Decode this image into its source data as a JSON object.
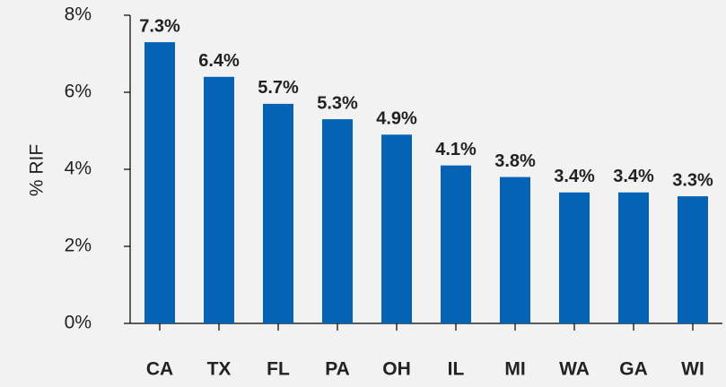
{
  "chart_data": {
    "type": "bar",
    "y_label": "% RIF",
    "categories": [
      "CA",
      "TX",
      "FL",
      "PA",
      "OH",
      "IL",
      "MI",
      "WA",
      "GA",
      "WI"
    ],
    "values": [
      7.3,
      6.4,
      5.7,
      5.3,
      4.9,
      4.1,
      3.8,
      3.4,
      3.4,
      3.3
    ],
    "value_labels": [
      "7.3%",
      "6.4%",
      "5.7%",
      "5.3%",
      "4.9%",
      "4.1%",
      "3.8%",
      "3.4%",
      "3.4%",
      "3.3%"
    ],
    "color": "#0563b5",
    "ylim": [
      0,
      8
    ],
    "yticks": [
      {
        "value": 0,
        "label": "0%"
      },
      {
        "value": 2,
        "label": "2%"
      },
      {
        "value": 4,
        "label": "4%"
      },
      {
        "value": 6,
        "label": "6%"
      },
      {
        "value": 8,
        "label": "8%"
      }
    ],
    "grid": false
  }
}
